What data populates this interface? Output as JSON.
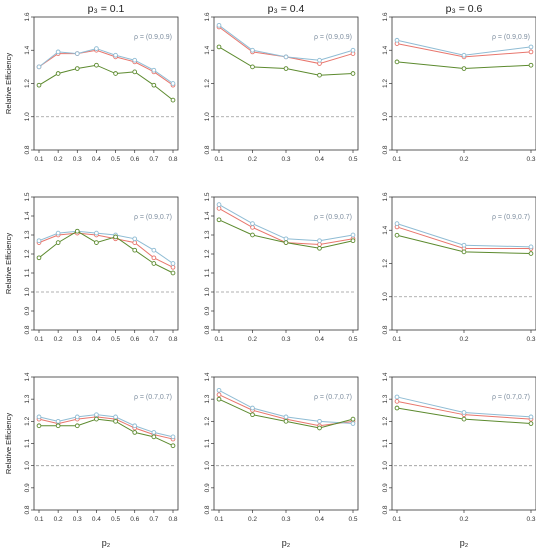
{
  "figure": {
    "column_titles": [
      "p₃ = 0.1",
      "p₃ = 0.4",
      "p₃ = 0.6"
    ],
    "row_ylabel": "Relative Efficiency",
    "xlabel": "p₂"
  },
  "colors": {
    "red": "#e8766d",
    "blue": "#8fbcd4",
    "green": "#5c8a2e",
    "reference_line": "#999999"
  },
  "chart_data": [
    {
      "type": "line",
      "title": "p₃ = 0.1",
      "annotation": "ρ = (0.9,0.9)",
      "xlabel": "",
      "ylabel": "Relative Efficiency",
      "x": [
        0.1,
        0.2,
        0.3,
        0.4,
        0.5,
        0.6,
        0.7,
        0.8
      ],
      "xticks": [
        "0.1",
        "0.2",
        "0.3",
        "0.4",
        "0.5",
        "0.6",
        "0.7",
        "0.8"
      ],
      "xlim": [
        0.1,
        0.8
      ],
      "ylim": [
        0.8,
        1.6
      ],
      "yticks": [
        "0.8",
        "1.0",
        "1.2",
        "1.4",
        "1.6"
      ],
      "reference_y": 1.0,
      "series": [
        {
          "color": "red",
          "values": [
            1.3,
            1.38,
            1.38,
            1.4,
            1.36,
            1.33,
            1.27,
            1.19
          ]
        },
        {
          "color": "blue",
          "values": [
            1.3,
            1.39,
            1.38,
            1.41,
            1.37,
            1.34,
            1.28,
            1.2
          ]
        },
        {
          "color": "green",
          "values": [
            1.19,
            1.26,
            1.29,
            1.31,
            1.26,
            1.27,
            1.19,
            1.1
          ]
        }
      ]
    },
    {
      "type": "line",
      "title": "p₃ = 0.4",
      "annotation": "ρ = (0.9,0.9)",
      "xlabel": "",
      "ylabel": "",
      "x": [
        0.1,
        0.2,
        0.3,
        0.4,
        0.5
      ],
      "xticks": [
        "0.1",
        "0.2",
        "0.3",
        "0.4",
        "0.5"
      ],
      "xlim": [
        0.1,
        0.5
      ],
      "ylim": [
        0.8,
        1.6
      ],
      "yticks": [
        "0.8",
        "1.0",
        "1.2",
        "1.4",
        "1.6"
      ],
      "reference_y": 1.0,
      "series": [
        {
          "color": "red",
          "values": [
            1.54,
            1.39,
            1.36,
            1.32,
            1.38
          ]
        },
        {
          "color": "blue",
          "values": [
            1.55,
            1.4,
            1.36,
            1.34,
            1.4
          ]
        },
        {
          "color": "green",
          "values": [
            1.42,
            1.3,
            1.29,
            1.25,
            1.26
          ]
        }
      ]
    },
    {
      "type": "line",
      "title": "p₃ = 0.6",
      "annotation": "ρ = (0.9,0.9)",
      "xlabel": "",
      "ylabel": "",
      "x": [
        0.1,
        0.2,
        0.3
      ],
      "xticks": [
        "0.1",
        "0.2",
        "0.3"
      ],
      "xlim": [
        0.1,
        0.3
      ],
      "ylim": [
        0.8,
        1.6
      ],
      "yticks": [
        "0.8",
        "1.0",
        "1.2",
        "1.4",
        "1.6"
      ],
      "reference_y": 1.0,
      "series": [
        {
          "color": "red",
          "values": [
            1.44,
            1.36,
            1.39
          ]
        },
        {
          "color": "blue",
          "values": [
            1.46,
            1.37,
            1.42
          ]
        },
        {
          "color": "green",
          "values": [
            1.33,
            1.29,
            1.31
          ]
        }
      ]
    },
    {
      "type": "line",
      "title": "",
      "annotation": "ρ = (0.9,0.7)",
      "xlabel": "",
      "ylabel": "Relative Efficiency",
      "x": [
        0.1,
        0.2,
        0.3,
        0.4,
        0.5,
        0.6,
        0.7,
        0.8
      ],
      "xticks": [
        "0.1",
        "0.2",
        "0.3",
        "0.4",
        "0.5",
        "0.6",
        "0.7",
        "0.8"
      ],
      "xlim": [
        0.1,
        0.8
      ],
      "ylim": [
        0.8,
        1.5
      ],
      "yticks": [
        "0.8",
        "0.9",
        "1.0",
        "1.1",
        "1.2",
        "1.3",
        "1.4",
        "1.5"
      ],
      "reference_y": 1.0,
      "series": [
        {
          "color": "red",
          "values": [
            1.26,
            1.3,
            1.31,
            1.3,
            1.28,
            1.26,
            1.18,
            1.13
          ]
        },
        {
          "color": "blue",
          "values": [
            1.27,
            1.31,
            1.32,
            1.31,
            1.3,
            1.28,
            1.22,
            1.15
          ]
        },
        {
          "color": "green",
          "values": [
            1.18,
            1.26,
            1.32,
            1.26,
            1.29,
            1.22,
            1.15,
            1.1
          ]
        }
      ]
    },
    {
      "type": "line",
      "title": "",
      "annotation": "ρ = (0.9,0.7)",
      "xlabel": "",
      "ylabel": "",
      "x": [
        0.1,
        0.2,
        0.3,
        0.4,
        0.5
      ],
      "xticks": [
        "0.1",
        "0.2",
        "0.3",
        "0.4",
        "0.5"
      ],
      "xlim": [
        0.1,
        0.5
      ],
      "ylim": [
        0.8,
        1.5
      ],
      "yticks": [
        "0.8",
        "0.9",
        "1.0",
        "1.1",
        "1.2",
        "1.3",
        "1.4",
        "1.5"
      ],
      "reference_y": 1.0,
      "series": [
        {
          "color": "red",
          "values": [
            1.44,
            1.34,
            1.26,
            1.25,
            1.28
          ]
        },
        {
          "color": "blue",
          "values": [
            1.46,
            1.36,
            1.28,
            1.27,
            1.3
          ]
        },
        {
          "color": "green",
          "values": [
            1.38,
            1.3,
            1.26,
            1.23,
            1.27
          ]
        }
      ]
    },
    {
      "type": "line",
      "title": "",
      "annotation": "ρ = (0.9,0.7)",
      "xlabel": "",
      "ylabel": "",
      "x": [
        0.1,
        0.2,
        0.3
      ],
      "xticks": [
        "0.1",
        "0.2",
        "0.3"
      ],
      "xlim": [
        0.1,
        0.3
      ],
      "ylim": [
        0.8,
        1.6
      ],
      "yticks": [
        "0.8",
        "1.0",
        "1.2",
        "1.4",
        "1.6"
      ],
      "reference_y": 1.0,
      "series": [
        {
          "color": "red",
          "values": [
            1.42,
            1.29,
            1.29
          ]
        },
        {
          "color": "blue",
          "values": [
            1.44,
            1.31,
            1.3
          ]
        },
        {
          "color": "green",
          "values": [
            1.37,
            1.27,
            1.26
          ]
        }
      ]
    },
    {
      "type": "line",
      "title": "",
      "annotation": "ρ = (0.7,0.7)",
      "xlabel": "p₂",
      "ylabel": "Relative Efficiency",
      "x": [
        0.1,
        0.2,
        0.3,
        0.4,
        0.5,
        0.6,
        0.7,
        0.8
      ],
      "xticks": [
        "0.1",
        "0.2",
        "0.3",
        "0.4",
        "0.5",
        "0.6",
        "0.7",
        "0.8"
      ],
      "xlim": [
        0.1,
        0.8
      ],
      "ylim": [
        0.8,
        1.4
      ],
      "yticks": [
        "0.8",
        "0.9",
        "1.0",
        "1.1",
        "1.2",
        "1.3",
        "1.4"
      ],
      "reference_y": 1.0,
      "series": [
        {
          "color": "red",
          "values": [
            1.21,
            1.19,
            1.21,
            1.22,
            1.21,
            1.17,
            1.14,
            1.12
          ]
        },
        {
          "color": "blue",
          "values": [
            1.22,
            1.2,
            1.22,
            1.23,
            1.22,
            1.18,
            1.15,
            1.13
          ]
        },
        {
          "color": "green",
          "values": [
            1.18,
            1.18,
            1.18,
            1.21,
            1.2,
            1.15,
            1.13,
            1.09
          ]
        }
      ]
    },
    {
      "type": "line",
      "title": "",
      "annotation": "ρ = (0.7,0.7)",
      "xlabel": "p₂",
      "ylabel": "",
      "x": [
        0.1,
        0.2,
        0.3,
        0.4,
        0.5
      ],
      "xticks": [
        "0.1",
        "0.2",
        "0.3",
        "0.4",
        "0.5"
      ],
      "xlim": [
        0.1,
        0.5
      ],
      "ylim": [
        0.8,
        1.4
      ],
      "yticks": [
        "0.8",
        "0.9",
        "1.0",
        "1.1",
        "1.2",
        "1.3",
        "1.4"
      ],
      "reference_y": 1.0,
      "series": [
        {
          "color": "red",
          "values": [
            1.32,
            1.25,
            1.21,
            1.18,
            1.2
          ]
        },
        {
          "color": "blue",
          "values": [
            1.34,
            1.26,
            1.22,
            1.2,
            1.19
          ]
        },
        {
          "color": "green",
          "values": [
            1.3,
            1.23,
            1.2,
            1.17,
            1.21
          ]
        }
      ]
    },
    {
      "type": "line",
      "title": "",
      "annotation": "ρ = (0.7,0.7)",
      "xlabel": "p₂",
      "ylabel": "",
      "x": [
        0.1,
        0.2,
        0.3
      ],
      "xticks": [
        "0.1",
        "0.2",
        "0.3"
      ],
      "xlim": [
        0.1,
        0.3
      ],
      "ylim": [
        0.8,
        1.4
      ],
      "yticks": [
        "0.8",
        "0.9",
        "1.0",
        "1.1",
        "1.2",
        "1.3",
        "1.4"
      ],
      "reference_y": 1.0,
      "series": [
        {
          "color": "red",
          "values": [
            1.29,
            1.23,
            1.21
          ]
        },
        {
          "color": "blue",
          "values": [
            1.31,
            1.24,
            1.22
          ]
        },
        {
          "color": "green",
          "values": [
            1.26,
            1.21,
            1.19
          ]
        }
      ]
    }
  ]
}
